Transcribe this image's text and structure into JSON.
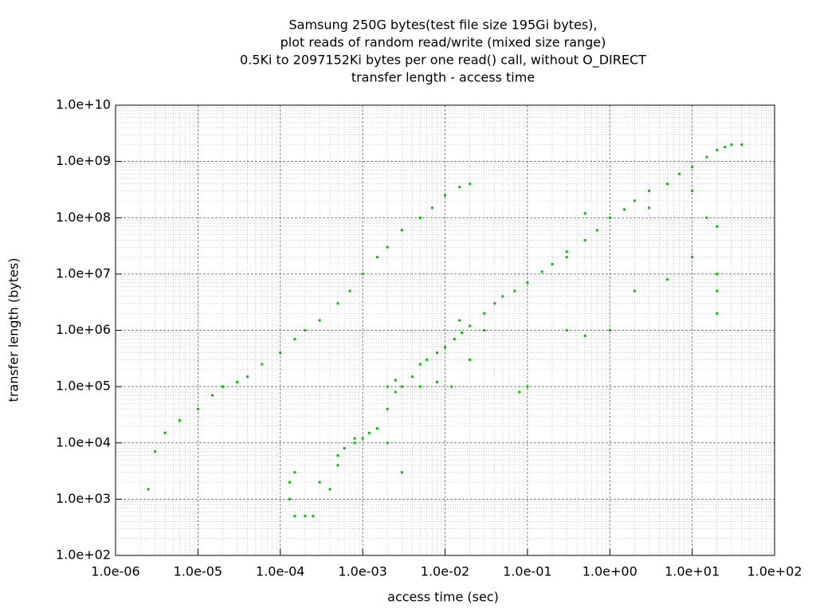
{
  "chart_data": {
    "type": "scatter",
    "title": [
      "Samsung 250G bytes(test file size 195Gi bytes),",
      "plot reads of random read/write (mixed size range)",
      "0.5Ki to 2097152Ki bytes per one read() call, without O_DIRECT",
      "transfer length - access time"
    ],
    "x_label": "access time (sec)",
    "y_label": "transfer length (bytes)",
    "xlog": true,
    "ylog": true,
    "grid": true,
    "minor_grid": true,
    "color": "#00c000",
    "xlim": [
      1e-06,
      100
    ],
    "ylim": [
      100,
      10000000000.0
    ],
    "xticks": [
      {
        "value": 1e-06,
        "label": "1.0e-06"
      },
      {
        "value": 1e-05,
        "label": "1.0e-05"
      },
      {
        "value": 0.0001,
        "label": "1.0e-04"
      },
      {
        "value": 0.001,
        "label": "1.0e-03"
      },
      {
        "value": 0.01,
        "label": "1.0e-02"
      },
      {
        "value": 0.1,
        "label": "1.0e-01"
      },
      {
        "value": 1,
        "label": "1.0e+00"
      },
      {
        "value": 10,
        "label": "1.0e+01"
      },
      {
        "value": 100,
        "label": "1.0e+02"
      }
    ],
    "yticks": [
      {
        "value": 100,
        "label": "1.0e+02"
      },
      {
        "value": 1000,
        "label": "1.0e+03"
      },
      {
        "value": 10000,
        "label": "1.0e+04"
      },
      {
        "value": 100000,
        "label": "1.0e+05"
      },
      {
        "value": 1000000,
        "label": "1.0e+06"
      },
      {
        "value": 10000000,
        "label": "1.0e+07"
      },
      {
        "value": 100000000,
        "label": "1.0e+08"
      },
      {
        "value": 1000000000,
        "label": "1.0e+09"
      },
      {
        "value": 10000000000,
        "label": "1.0e+10"
      }
    ],
    "x": [
      0.0015,
      0.002,
      0.0025,
      0.003,
      0.002,
      0.0025,
      0.004,
      0.005,
      0.006,
      0.008,
      0.01,
      0.013,
      0.016,
      0.02,
      0.03,
      0.04,
      0.05,
      0.07,
      0.1,
      0.15,
      0.2,
      0.3,
      0.5,
      0.7,
      1,
      1.5,
      2,
      3,
      5,
      7,
      10,
      15,
      20,
      25,
      30,
      40,
      0.0012,
      0.001,
      0.0008,
      0.0006,
      0.0005,
      0.0005,
      0.0003,
      0.0004,
      0.00015,
      0.0002,
      0.00025,
      0.00013,
      0.00015,
      0.00013,
      2.5e-06,
      3e-06,
      4e-06,
      6e-06,
      1e-05,
      1.5e-05,
      2e-05,
      3e-05,
      4e-05,
      6e-05,
      0.0001,
      0.00015,
      0.0002,
      0.0003,
      0.0005,
      0.0007,
      0.001,
      0.0015,
      0.002,
      0.003,
      0.005,
      0.007,
      0.01,
      0.015,
      0.02,
      0.005,
      0.008,
      0.012,
      0.02,
      0.015,
      0.03,
      0.3,
      0.5,
      1,
      2,
      5,
      10,
      20,
      20,
      20,
      10,
      15,
      20,
      3,
      0.5,
      0.3,
      0.08,
      0.1,
      0.002,
      0.003,
      0.0008
    ],
    "y": [
      18000,
      40000,
      80000,
      100000,
      100000,
      130000,
      150000,
      250000,
      300000,
      400000,
      500000,
      700000,
      900000,
      1200000,
      2000000,
      3000000,
      4000000,
      5000000,
      7000000,
      11000000,
      15000000,
      25000000,
      40000000,
      60000000,
      100000000,
      140000000,
      200000000,
      300000000,
      400000000,
      600000000,
      800000000,
      1200000000,
      1600000000,
      1800000000,
      2000000000,
      2000000000,
      15000,
      12000,
      10000,
      8000,
      6000,
      4000,
      2000,
      1500,
      500,
      500,
      500,
      2000,
      3000,
      1000,
      1500,
      7000,
      15000,
      25000,
      40000,
      70000,
      100000,
      120000,
      150000,
      250000,
      400000,
      700000,
      1000000,
      1500000,
      3000000,
      5000000,
      10000000,
      20000000,
      30000000,
      60000000,
      100000000,
      150000000,
      250000000,
      350000000,
      400000000,
      100000,
      120000,
      100000,
      300000,
      1500000,
      1000000,
      1000000,
      800000,
      1000000,
      5000000,
      8000000,
      20000000,
      10000000,
      5000000,
      2000000,
      300000000,
      100000000,
      70000000,
      150000000,
      120000000,
      20000000,
      80000,
      100000,
      10000,
      3000,
      12000
    ]
  }
}
